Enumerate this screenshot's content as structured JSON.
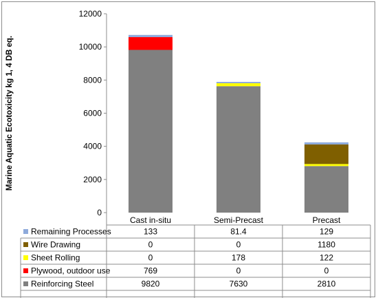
{
  "chart_data": {
    "type": "bar",
    "stacked": true,
    "title": "",
    "ylabel": "Marine Aquatic Ecotoxicity  kg 1, 4 DB eq.",
    "xlabel": "",
    "ylim": [
      0,
      12000
    ],
    "yticks": [
      0,
      2000,
      4000,
      6000,
      8000,
      10000,
      12000
    ],
    "grid": false,
    "legend": "data-table-below",
    "categories": [
      "Cast in-situ",
      "Semi-Precast",
      "Precast"
    ],
    "series": [
      {
        "name": "Reinforcing Steel",
        "color": "#808080",
        "values": [
          9820,
          7630,
          2810
        ]
      },
      {
        "name": "Plywood, outdoor use",
        "color": "#ff0000",
        "values": [
          769,
          0,
          0
        ]
      },
      {
        "name": "Sheet Rolling",
        "color": "#ffff00",
        "values": [
          0,
          178,
          122
        ]
      },
      {
        "name": "Wire Drawing",
        "color": "#7f5f00",
        "values": [
          0,
          0,
          1180
        ]
      },
      {
        "name": "Remaining Processes",
        "color": "#8eaadb",
        "values": [
          133,
          81.4,
          129
        ]
      }
    ]
  }
}
